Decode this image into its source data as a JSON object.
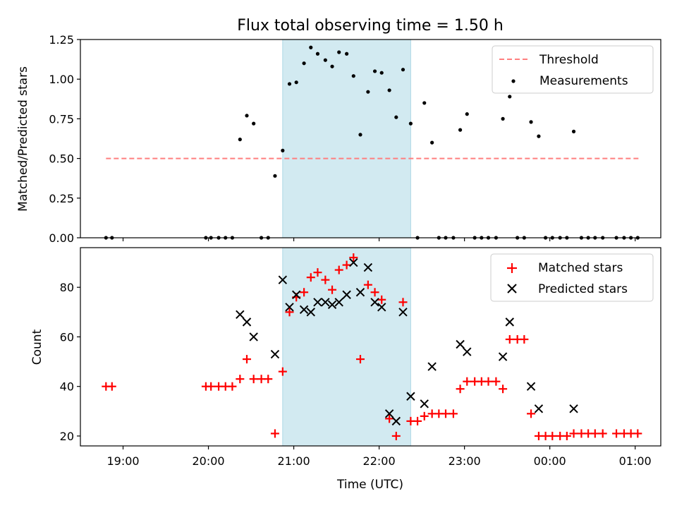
{
  "figure": {
    "title": "Flux total observing time = 1.50 h"
  },
  "colors": {
    "threshold": "#ff7f7f",
    "measurements": "#000000",
    "matched": "#ff0000",
    "predicted": "#000000",
    "window": "#add8e6"
  },
  "chart_data": [
    {
      "type": "scatter",
      "title": "Flux total observing time = 1.50 h",
      "xlabel": "",
      "ylabel": "Matched/Predicted stars",
      "x_ticks": [
        "19:00",
        "20:00",
        "21:00",
        "22:00",
        "23:00",
        "00:00",
        "01:00"
      ],
      "x_tick_hours": [
        19,
        20,
        21,
        22,
        23,
        24,
        25
      ],
      "xlim_hours": [
        18.5,
        25.3
      ],
      "ylim": [
        0,
        1.25
      ],
      "y_ticks": [
        "0.00",
        "0.25",
        "0.50",
        "0.75",
        "1.00",
        "1.25"
      ],
      "highlight_window_hours": [
        20.87,
        22.37
      ],
      "threshold": {
        "name": "Threshold",
        "y": 0.5,
        "x_range_hours": [
          18.8,
          25.05
        ]
      },
      "legend_position": "upper right",
      "legend": [
        "Threshold",
        "Measurements"
      ],
      "series": [
        {
          "name": "Measurements",
          "x_hours": [
            18.8,
            18.87,
            19.97,
            20.03,
            20.12,
            20.2,
            20.28,
            20.37,
            20.45,
            20.53,
            20.62,
            20.7,
            20.78,
            20.87,
            20.95,
            21.03,
            21.12,
            21.2,
            21.28,
            21.37,
            21.45,
            21.53,
            21.62,
            21.7,
            21.78,
            21.87,
            21.95,
            22.03,
            22.12,
            22.2,
            22.28,
            22.37,
            22.45,
            22.53,
            22.62,
            22.7,
            22.78,
            22.87,
            22.95,
            23.03,
            23.12,
            23.2,
            23.28,
            23.37,
            23.45,
            23.53,
            23.62,
            23.7,
            23.78,
            23.87,
            23.95,
            24.03,
            24.12,
            24.2,
            24.28,
            24.37,
            24.45,
            24.53,
            24.62,
            24.78,
            24.87,
            24.95,
            25.03
          ],
          "y": [
            0,
            0,
            0,
            0,
            0,
            0,
            0,
            0.62,
            0.77,
            0.72,
            0,
            0,
            0.39,
            0.55,
            0.97,
            0.98,
            1.1,
            1.2,
            1.16,
            1.12,
            1.08,
            1.17,
            1.16,
            1.02,
            0.65,
            0.92,
            1.05,
            1.04,
            0.93,
            0.76,
            1.06,
            0.72,
            0,
            0.85,
            0.6,
            0,
            0,
            0,
            0.68,
            0.78,
            0,
            0,
            0,
            0,
            0.75,
            0.89,
            0,
            0,
            0.73,
            0.64,
            0,
            0,
            0,
            0,
            0.67,
            0,
            0,
            0,
            0,
            0,
            0,
            0,
            0
          ]
        }
      ]
    },
    {
      "type": "scatter",
      "title": "",
      "xlabel": "Time (UTC)",
      "ylabel": "Count",
      "x_ticks": [
        "19:00",
        "20:00",
        "21:00",
        "22:00",
        "23:00",
        "00:00",
        "01:00"
      ],
      "x_tick_hours": [
        19,
        20,
        21,
        22,
        23,
        24,
        25
      ],
      "xlim_hours": [
        18.5,
        25.3
      ],
      "ylim": [
        16,
        96
      ],
      "y_ticks": [
        "20",
        "40",
        "60",
        "80"
      ],
      "highlight_window_hours": [
        20.87,
        22.37
      ],
      "legend_position": "upper right",
      "legend": [
        "Matched stars",
        "Predicted stars"
      ],
      "series": [
        {
          "name": "Matched stars",
          "marker": "+",
          "x_hours": [
            18.8,
            18.87,
            19.97,
            20.03,
            20.12,
            20.2,
            20.28,
            20.37,
            20.45,
            20.53,
            20.62,
            20.7,
            20.78,
            20.87,
            20.95,
            21.03,
            21.12,
            21.2,
            21.28,
            21.37,
            21.45,
            21.53,
            21.62,
            21.7,
            21.78,
            21.87,
            21.95,
            22.03,
            22.12,
            22.2,
            22.28,
            22.37,
            22.45,
            22.53,
            22.62,
            22.7,
            22.78,
            22.87,
            22.95,
            23.03,
            23.12,
            23.2,
            23.28,
            23.37,
            23.45,
            23.53,
            23.62,
            23.7,
            23.78,
            23.87,
            23.95,
            24.03,
            24.12,
            24.2,
            24.28,
            24.37,
            24.45,
            24.53,
            24.62,
            24.78,
            24.87,
            24.95,
            25.03
          ],
          "y": [
            40,
            40,
            40,
            40,
            40,
            40,
            40,
            43,
            51,
            43,
            43,
            43,
            21,
            46,
            70,
            76,
            78,
            84,
            86,
            83,
            79,
            87,
            89,
            92,
            51,
            81,
            78,
            75,
            27,
            20,
            74,
            26,
            26,
            28,
            29,
            29,
            29,
            29,
            39,
            42,
            42,
            42,
            42,
            42,
            39,
            59,
            59,
            59,
            29,
            20,
            20,
            20,
            20,
            20,
            21,
            21,
            21,
            21,
            21,
            21,
            21,
            21,
            21
          ]
        },
        {
          "name": "Predicted stars",
          "marker": "x",
          "x_hours": [
            20.37,
            20.45,
            20.53,
            20.78,
            20.87,
            20.95,
            21.03,
            21.12,
            21.2,
            21.28,
            21.37,
            21.45,
            21.53,
            21.62,
            21.7,
            21.78,
            21.87,
            21.95,
            22.03,
            22.12,
            22.2,
            22.28,
            22.37,
            22.53,
            22.62,
            22.95,
            23.03,
            23.45,
            23.53,
            23.78,
            23.87,
            24.28
          ],
          "y": [
            69,
            66,
            60,
            53,
            83,
            72,
            77,
            71,
            70,
            74,
            74,
            73,
            74,
            77,
            90,
            78,
            88,
            74,
            72,
            29,
            26,
            70,
            36,
            33,
            48,
            57,
            54,
            52,
            66,
            40,
            31,
            31
          ]
        }
      ]
    }
  ]
}
